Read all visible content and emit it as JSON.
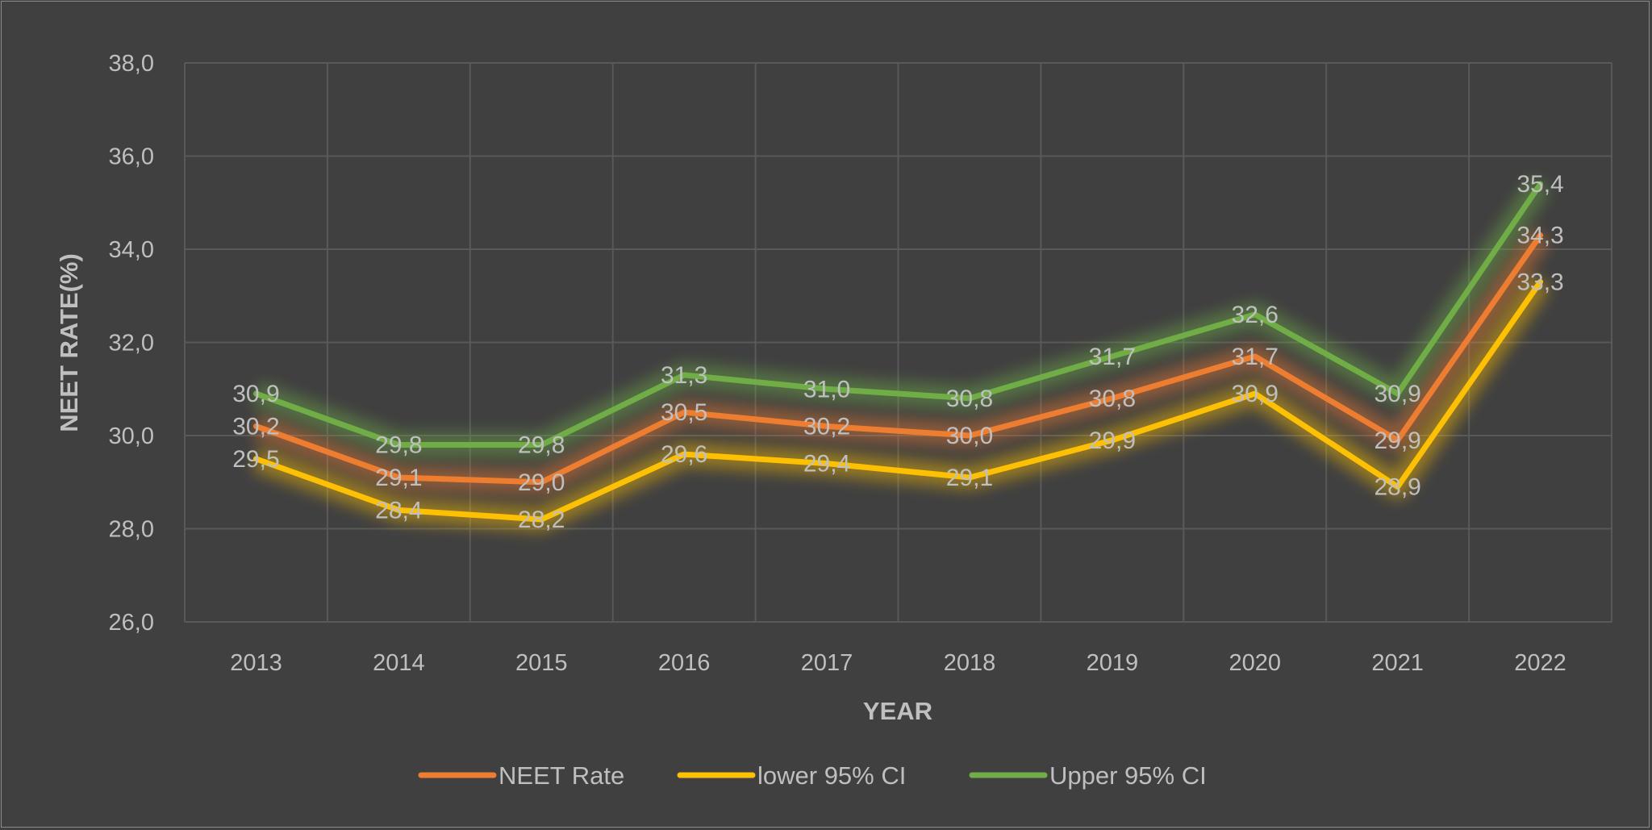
{
  "chart_data": {
    "type": "line",
    "title": "",
    "xlabel": "YEAR",
    "ylabel": "NEET RATE(%)",
    "ylim": [
      26,
      38
    ],
    "ytick_step": 2,
    "ytick_labels": [
      "26,0",
      "28,0",
      "30,0",
      "32,0",
      "34,0",
      "36,0",
      "38,0"
    ],
    "grid": true,
    "legend_position": "bottom",
    "categories": [
      "2013",
      "2014",
      "2015",
      "2016",
      "2017",
      "2018",
      "2019",
      "2020",
      "2021",
      "2022"
    ],
    "series": [
      {
        "name": "NEET Rate",
        "color": "#ED7D31",
        "values": [
          30.2,
          29.1,
          29.0,
          30.5,
          30.2,
          30.0,
          30.8,
          31.7,
          29.9,
          34.3
        ]
      },
      {
        "name": "lower 95% CI",
        "color": "#FFC000",
        "values": [
          29.5,
          28.4,
          28.2,
          29.6,
          29.4,
          29.1,
          29.9,
          30.9,
          28.9,
          33.3
        ]
      },
      {
        "name": "Upper 95% CI",
        "color": "#70AD47",
        "values": [
          30.9,
          29.8,
          29.8,
          31.3,
          31.0,
          30.8,
          31.7,
          32.6,
          30.9,
          35.4
        ]
      }
    ],
    "colors": {
      "background": "#404040",
      "grid": "#595959",
      "text": "#BFBFBF"
    }
  }
}
